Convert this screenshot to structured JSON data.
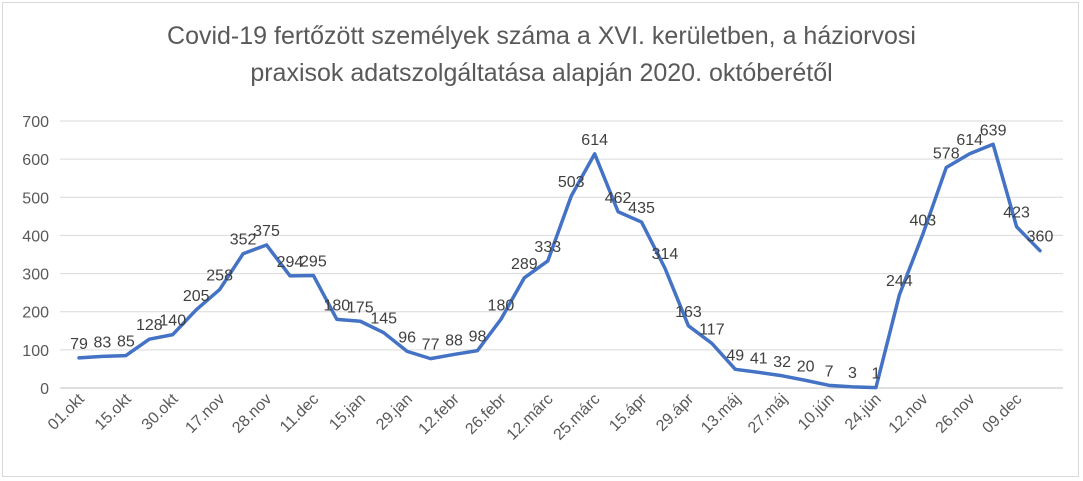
{
  "chart_data": {
    "type": "line",
    "title_lines": [
      "Covid-19 fertőzött személyek száma a XVI. kerületben, a háziorvosi",
      "praxisok adatszolgáltatása alapján 2020. októberétől"
    ],
    "xlabel": "",
    "ylabel": "",
    "ylim": [
      0,
      700
    ],
    "yticks": [
      0,
      100,
      200,
      300,
      400,
      500,
      600,
      700
    ],
    "grid": true,
    "legend": "none",
    "line_color": "#4472c4",
    "x_tick_labels": [
      "01.okt",
      "15.okt",
      "30.okt",
      "17.nov",
      "28.nov",
      "11.dec",
      "15.jan",
      "29.jan",
      "12.febr",
      "26.febr",
      "12.márc",
      "25.márc",
      "15.ápr",
      "29.ápr",
      "13.máj",
      "27.máj",
      "10.jún",
      "24.jún",
      "12.nov",
      "26.nov",
      "09.dec"
    ],
    "x_tick_positions": [
      0,
      2,
      4,
      6,
      8,
      10,
      12,
      14,
      16,
      18,
      20,
      22,
      24,
      26,
      28,
      30,
      32,
      34,
      36,
      38,
      40
    ],
    "values": [
      79,
      83,
      85,
      128,
      140,
      205,
      258,
      352,
      375,
      294,
      295,
      180,
      175,
      145,
      96,
      77,
      88,
      98,
      180,
      289,
      333,
      503,
      614,
      462,
      435,
      314,
      163,
      117,
      49,
      41,
      32,
      20,
      7,
      3,
      1,
      244,
      403,
      578,
      614,
      639,
      423,
      360
    ]
  }
}
